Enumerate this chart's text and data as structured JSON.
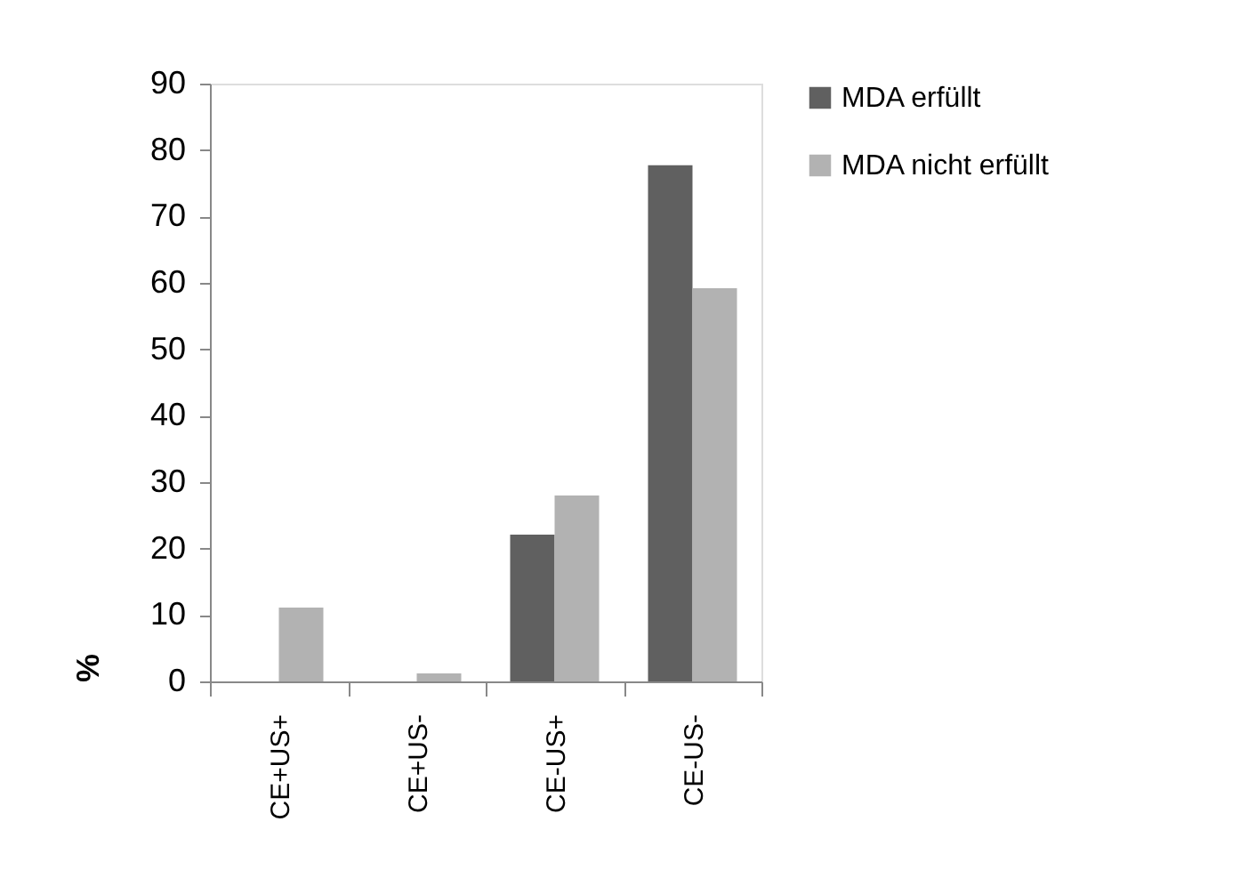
{
  "chart_data": {
    "type": "bar",
    "categories": [
      "CE+US+",
      "CE+US-",
      "CE-US+",
      "CE-US-"
    ],
    "series": [
      {
        "name": "MDA erfüllt",
        "color": "#606060",
        "values": [
          0,
          0,
          22.1,
          77.7
        ]
      },
      {
        "name": "MDA nicht erfüllt",
        "color": "#b2b2b2",
        "values": [
          11.1,
          1.2,
          28.0,
          59.2
        ]
      }
    ],
    "ylabel": "%",
    "ylim": [
      0,
      90
    ],
    "yticks": [
      0,
      10,
      20,
      30,
      40,
      50,
      60,
      70,
      80,
      90
    ],
    "grid": false,
    "legend": "right"
  }
}
